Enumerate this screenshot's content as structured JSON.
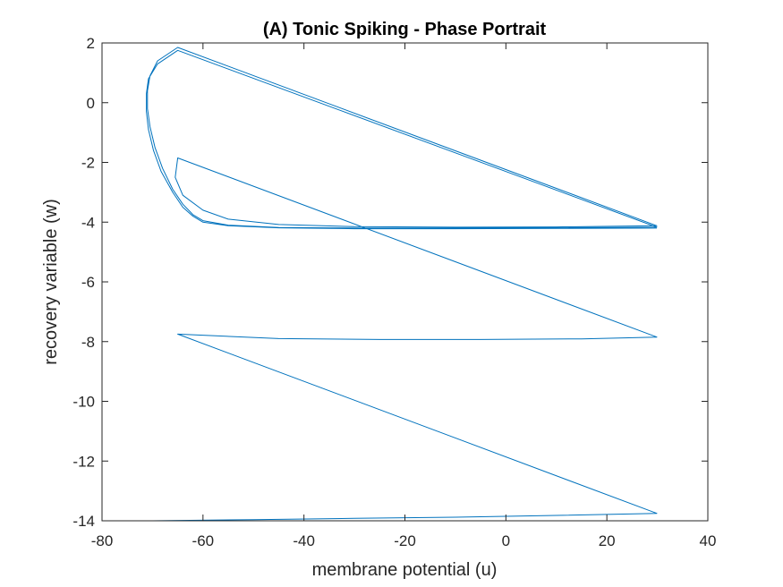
{
  "chart_data": {
    "type": "line",
    "title": "(A) Tonic Spiking - Phase Portrait",
    "xlabel": "membrane potential (u)",
    "ylabel": "recovery variable (w)",
    "xlim": [
      -80,
      40
    ],
    "ylim": [
      -14,
      2
    ],
    "xticks": [
      -80,
      -60,
      -40,
      -20,
      0,
      20,
      40
    ],
    "yticks": [
      -14,
      -12,
      -10,
      -8,
      -6,
      -4,
      -2,
      0,
      2
    ],
    "xtick_labels": [
      "-80",
      "-60",
      "-40",
      "-20",
      "0",
      "20",
      "40"
    ],
    "ytick_labels": [
      "-14",
      "-12",
      "-10",
      "-8",
      "-6",
      "-4",
      "-2",
      "0",
      "2"
    ],
    "grid": false,
    "line_color": "#0072BD",
    "series": [
      {
        "x": [
          -70,
          -50,
          -30,
          -10,
          10,
          29.9,
          29.9,
          -65,
          -45,
          -25,
          -5,
          15,
          29.9,
          29.9,
          -65,
          -65.5,
          -64,
          -60,
          -55,
          -45,
          -30,
          -10,
          10,
          29.9,
          29.9,
          -65,
          -69,
          -70.5,
          -71,
          -71,
          -70.5,
          -69.5,
          -68,
          -66,
          -64,
          -62,
          -60,
          -55,
          -45,
          -30,
          -10,
          10,
          29.9,
          29.9,
          -65,
          -69,
          -70.8,
          -71.2,
          -71.2,
          -70.8,
          -69.8,
          -68.3,
          -66,
          -64,
          -62,
          -60,
          -55,
          -45,
          -30,
          -10,
          10,
          29.9
        ],
        "y": [
          -14.0,
          -13.96,
          -13.92,
          -13.88,
          -13.82,
          -13.75,
          -13.75,
          -7.75,
          -7.9,
          -7.93,
          -7.93,
          -7.91,
          -7.85,
          -7.85,
          -1.85,
          -2.5,
          -3.1,
          -3.6,
          -3.9,
          -4.08,
          -4.15,
          -4.17,
          -4.16,
          -4.12,
          -4.12,
          1.85,
          1.4,
          0.9,
          0.4,
          -0.2,
          -0.8,
          -1.5,
          -2.2,
          -2.9,
          -3.4,
          -3.75,
          -3.95,
          -4.1,
          -4.18,
          -4.2,
          -4.2,
          -4.19,
          -4.17,
          -4.17,
          1.75,
          1.3,
          0.8,
          0.3,
          -0.3,
          -0.9,
          -1.6,
          -2.3,
          -3.0,
          -3.5,
          -3.8,
          -4.0,
          -4.12,
          -4.19,
          -4.22,
          -4.22,
          -4.21,
          -4.2
        ]
      }
    ]
  }
}
